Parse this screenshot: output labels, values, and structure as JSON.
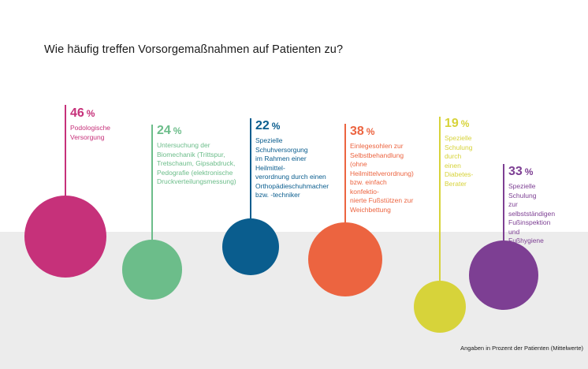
{
  "title": "Wie häufig treffen Vorsorgemaßnahmen auf Patienten zu?",
  "note": "Angaben in Prozent der Patienten (Mittelwerte)",
  "chart_data": {
    "type": "bubble",
    "title": "Wie häufig treffen Vorsorgemaßnahmen auf Patienten zu?",
    "unit": "%",
    "categories": [
      "Podologische Versorgung",
      "Untersuchung der Biomechanik (Trittspur, Tretschaum, Gipsabdruck, Pedografie (elektronische Druckverteilungsmessung)",
      "Spezielle Schuhversorgung im Rahmen einer Heilmittelverordnung durch einen Orthopädieschuhmacher bzw. -techniker",
      "Einlegesohlen zur Selbstbehandlung (ohne Heilmittelverordnung) bzw. einfach konfektionierte Fußstützen zur Weichbettung",
      "Spezielle Schulung durch einen Diabetes-Berater",
      "Spezielle Schulung zur selbstständigen Fußinspektion und Fußhygiene"
    ],
    "values": [
      46,
      24,
      22,
      38,
      19,
      33
    ],
    "colors": [
      "#c6317a",
      "#6cbd8a",
      "#0a5d8e",
      "#ec6440",
      "#d7d33a",
      "#7d3f93"
    ]
  },
  "items": [
    {
      "pct": "46",
      "sign": "%",
      "desc": "Podologische\nVersorgung"
    },
    {
      "pct": "24",
      "sign": "%",
      "desc": "Untersuchung der\nBiomechanik (Trittspur,\nTretschaum, Gipsabdruck,\nPedografie (elektronische\nDruckverteilungsmessung)"
    },
    {
      "pct": "22",
      "sign": "%",
      "desc": "Spezielle Schuhversorgung\nim Rahmen einer Heilmittel-\nverordnung durch einen\nOrthopädieschuhmacher\nbzw. -techniker"
    },
    {
      "pct": "38",
      "sign": "%",
      "desc": "Einlegesohlen zur\nSelbstbehandlung (ohne\nHeilmittelverordnung)\nbzw. einfach konfektio-\nnierte Fußstützen zur\nWeichbettung"
    },
    {
      "pct": "19",
      "sign": "%",
      "desc": "Spezielle Schulung durch\neinen Diabetes-Berater"
    },
    {
      "pct": "33",
      "sign": "%",
      "desc": "Spezielle Schulung\nzur selbstständigen\nFußinspektion und\nFußhygiene"
    }
  ]
}
